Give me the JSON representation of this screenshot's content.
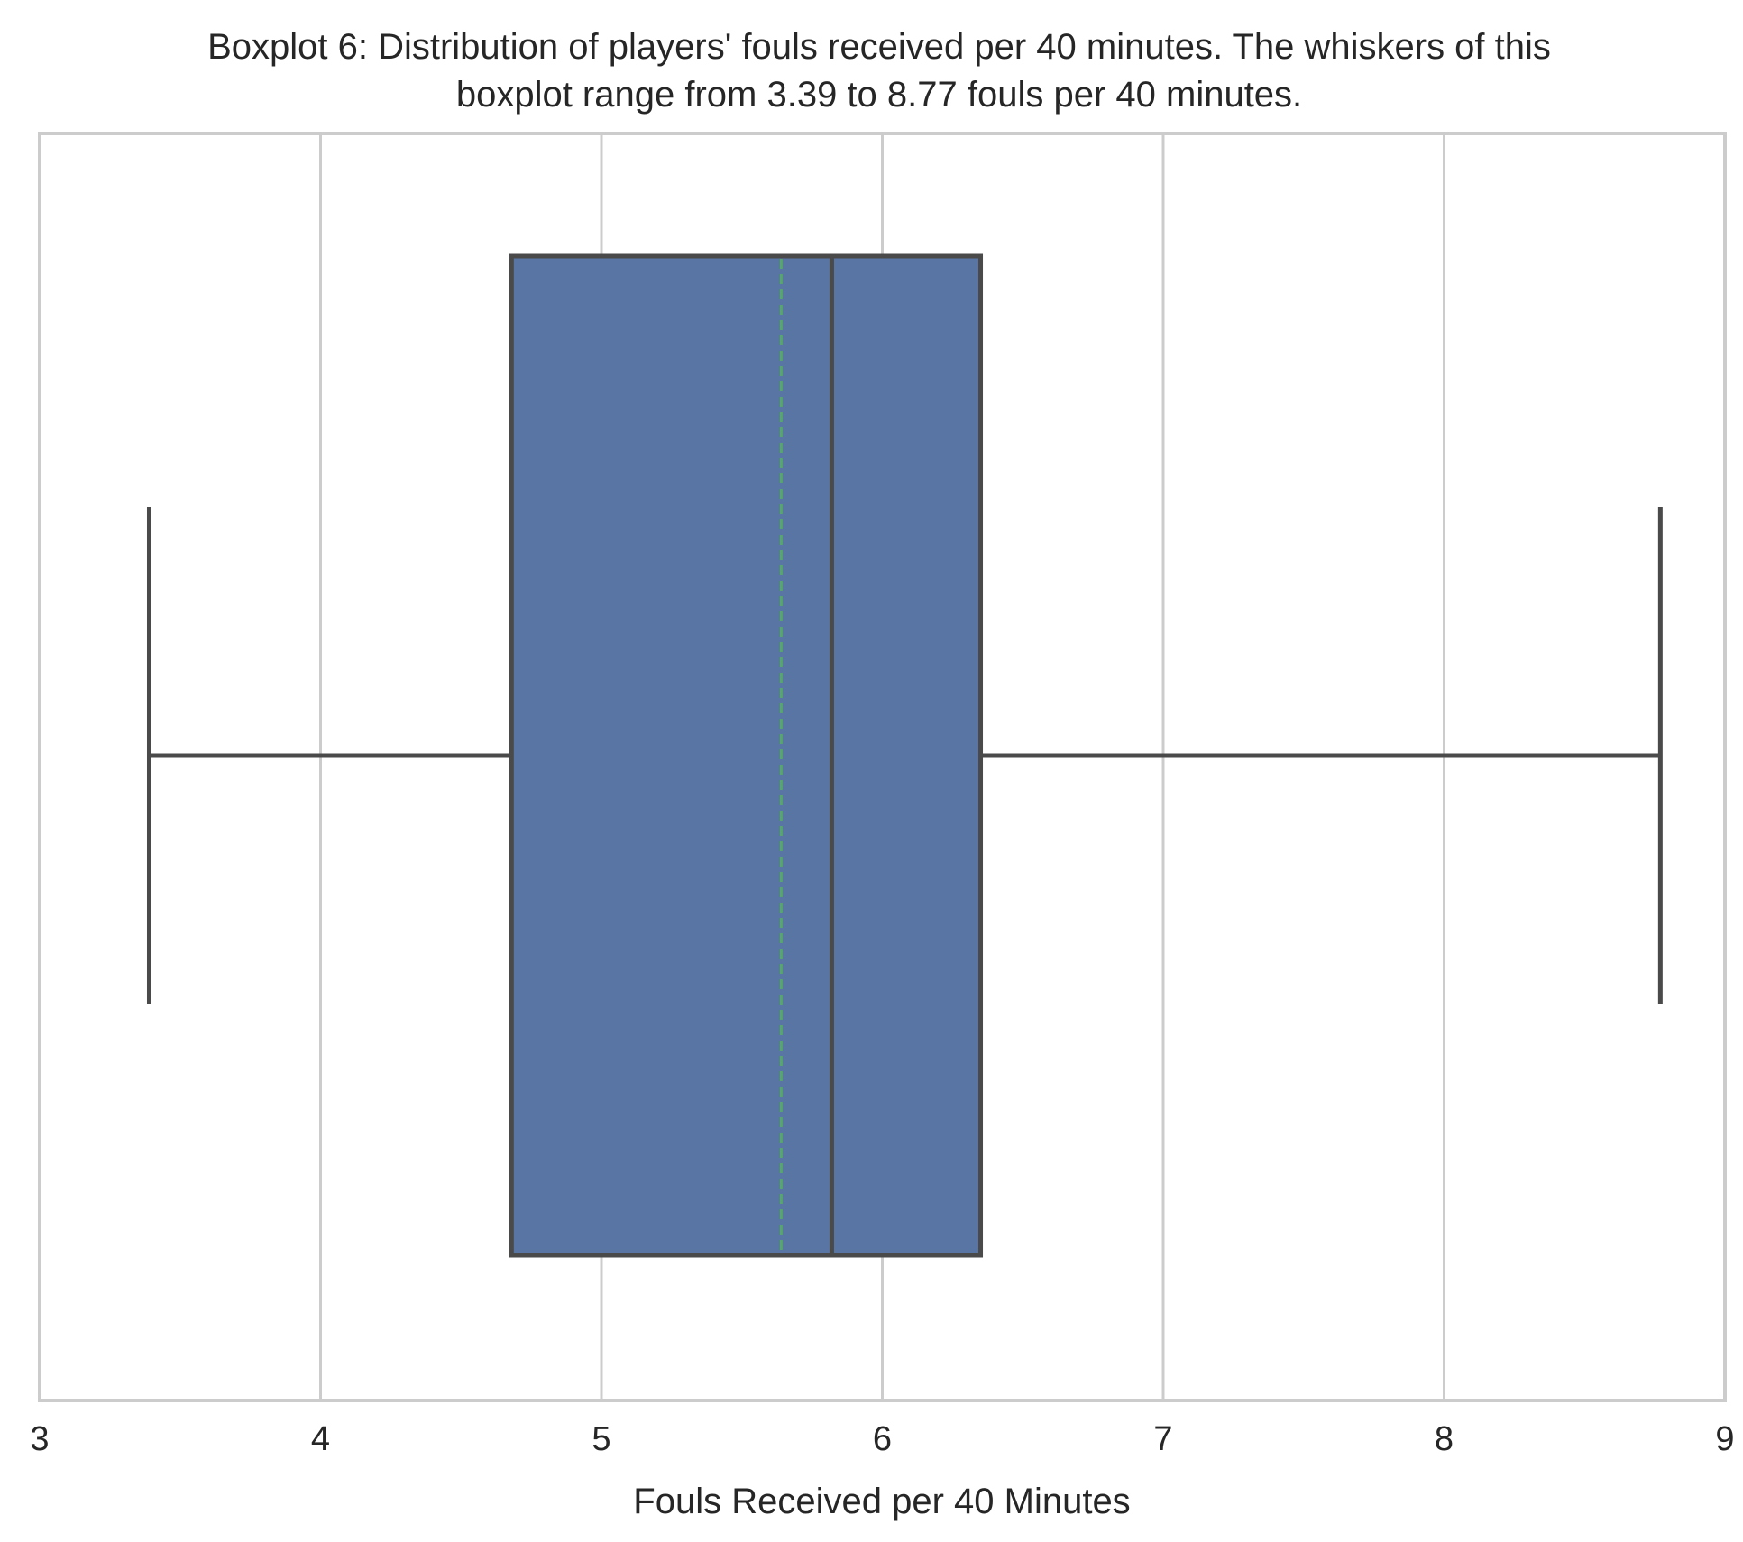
{
  "chart_data": {
    "type": "boxplot",
    "title_line1": "Boxplot 6: Distribution of players' fouls received per 40 minutes. The whiskers of this",
    "title_line2": "boxplot range from 3.39 to 8.77 fouls per 40 minutes.",
    "xlabel": "Fouls Received per 40 Minutes",
    "ylabel": "",
    "xlim": [
      3,
      9
    ],
    "xticks": [
      3,
      4,
      5,
      6,
      7,
      8,
      9
    ],
    "xtick_labels": [
      "3",
      "4",
      "5",
      "6",
      "7",
      "8",
      "9"
    ],
    "grid": true,
    "orientation": "horizontal",
    "box": {
      "whisker_low": 3.39,
      "q1": 4.68,
      "median": 5.82,
      "mean": 5.64,
      "q3": 6.35,
      "whisker_high": 8.77
    },
    "colors": {
      "box_fill": "#5975a4",
      "box_edge": "#4a4a4a",
      "mean_line": "#55a868",
      "grid": "#cccccc",
      "text": "#262626"
    }
  }
}
